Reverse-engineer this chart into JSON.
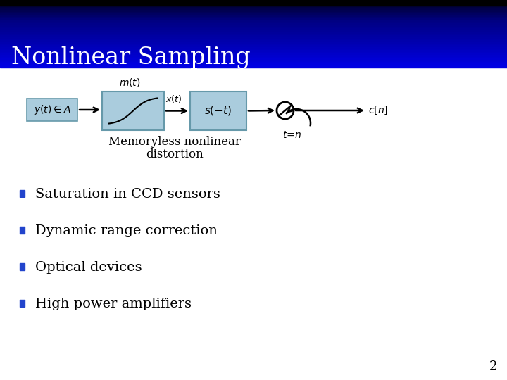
{
  "title": "Nonlinear Sampling",
  "bg_color": "#ffffff",
  "header_top_color": "#000011",
  "header_mid_color": "#0000aa",
  "header_bot_color": "#1111dd",
  "box_fill": "#aaccdd",
  "box_edge": "#6699aa",
  "bullet_color": "#2244cc",
  "bullet_items": [
    "Saturation in CCD sensors",
    "Dynamic range correction",
    "Optical devices",
    "High power amplifiers"
  ],
  "page_number": "2",
  "diagram": {
    "input_label": "$y(t) \\in A$",
    "nlbox_top_label": "$m(t)$",
    "nlbox_out_label": "$x(t)$",
    "sbox_label": "$s(-t)$",
    "sampler_label": "$t\\!=\\!n$",
    "output_label": "$c[n]$",
    "caption_line1": "Memoryless nonlinear",
    "caption_line2": "distortion"
  }
}
